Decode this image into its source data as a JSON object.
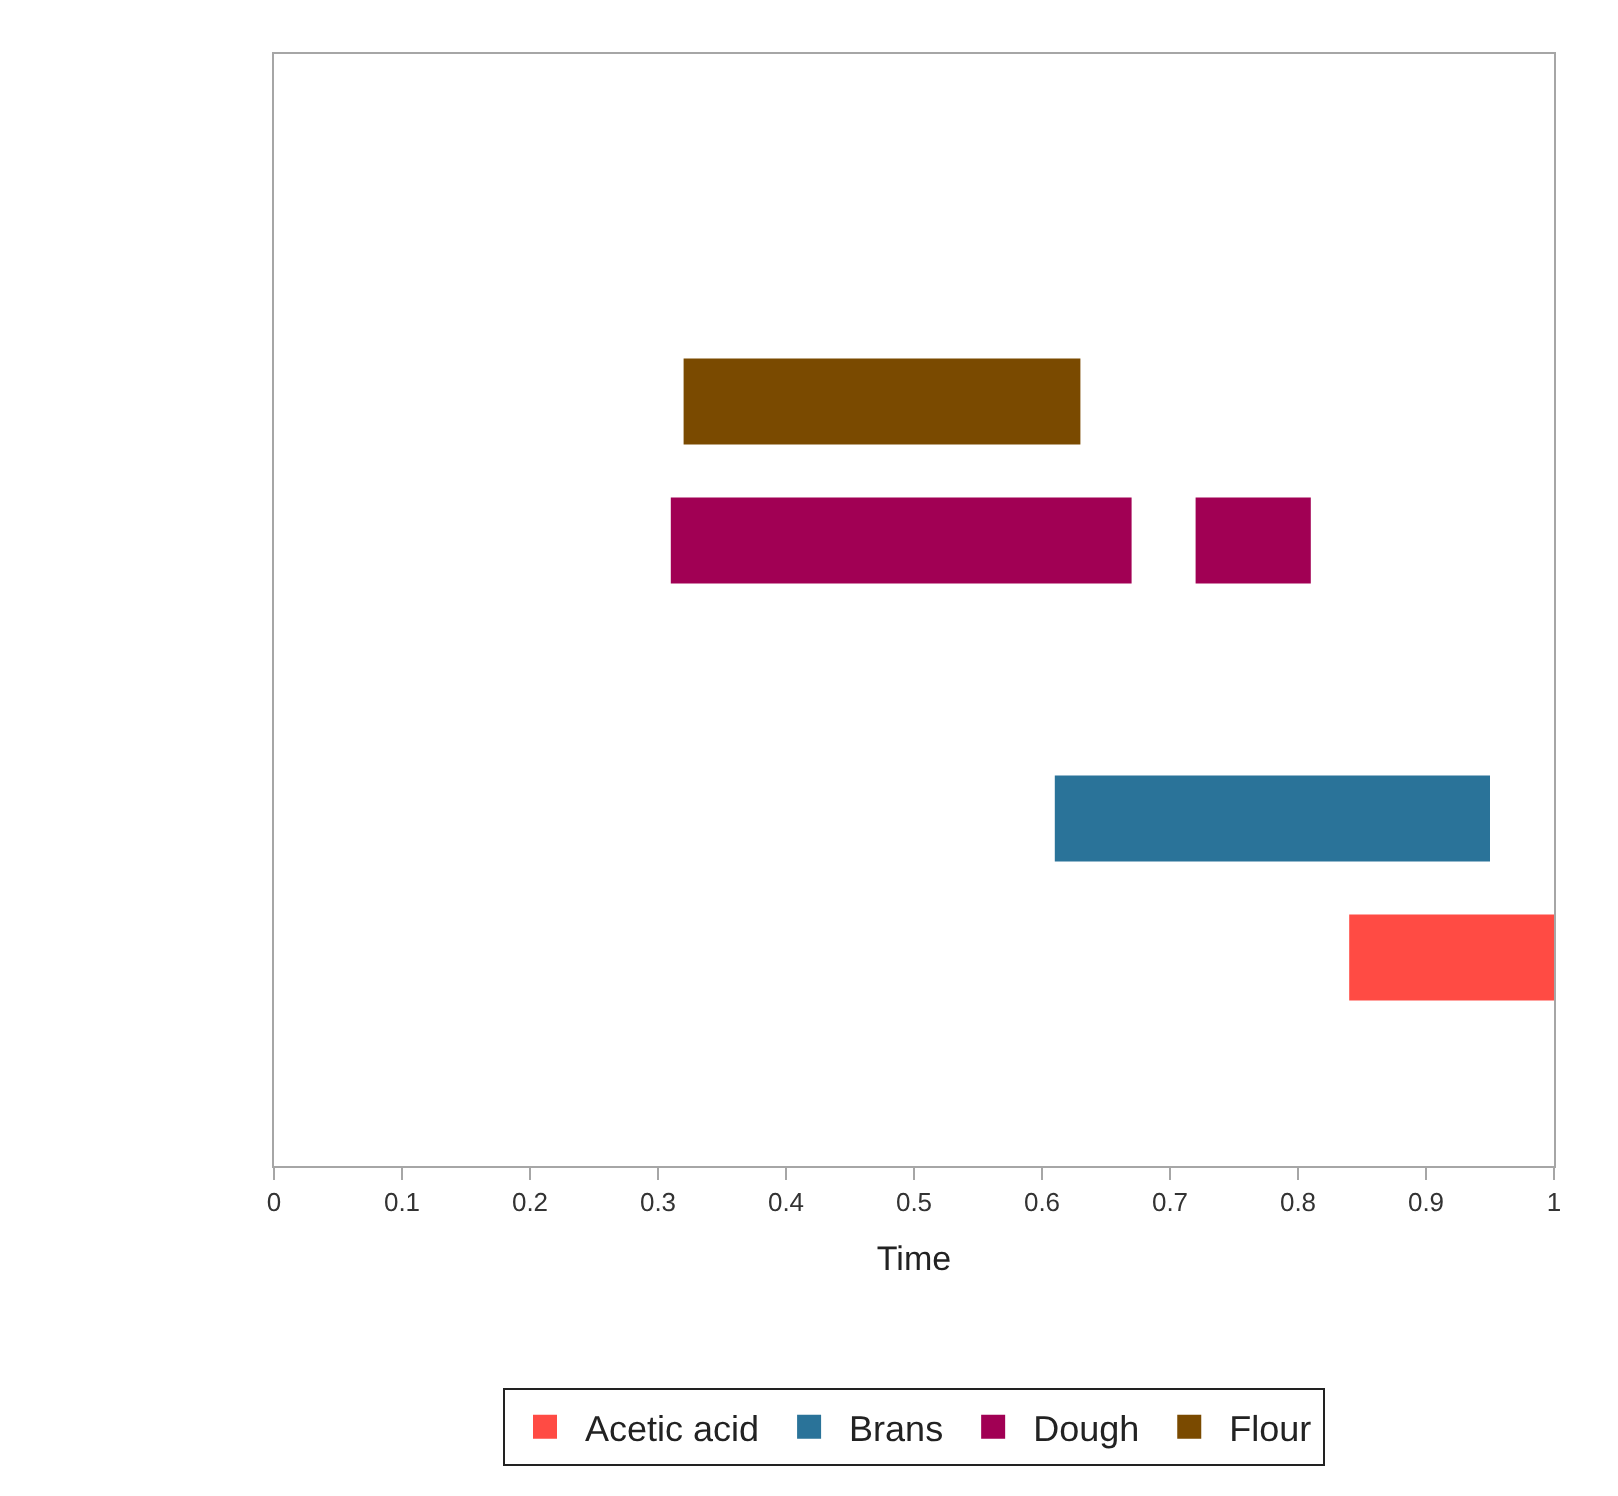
{
  "chart_data": {
    "type": "bar",
    "orientation": "horizontal",
    "xlabel": "Time",
    "categories": [
      null,
      null,
      null,
      null,
      null,
      null,
      null,
      null
    ],
    "xlim": [
      0,
      1
    ],
    "xticks": [
      0,
      0.1,
      0.2,
      0.3,
      0.4,
      0.5,
      0.6,
      0.7,
      0.8,
      0.9,
      1
    ],
    "legend": "bottom",
    "series": [
      {
        "name": "Acetic acid",
        "color": "#ff4b44",
        "values": [
          null,
          null,
          null,
          null,
          null,
          null,
          0.16,
          null
        ],
        "base": [
          null,
          null,
          null,
          null,
          null,
          null,
          0.84,
          null
        ]
      },
      {
        "name": "Brans",
        "color": "#2a7399",
        "values": [
          null,
          null,
          null,
          null,
          null,
          0.34,
          null,
          null
        ],
        "base": [
          null,
          null,
          null,
          null,
          null,
          0.61,
          null,
          null
        ]
      },
      {
        "name": "Dough",
        "color": "#a10054",
        "values": [
          null,
          null,
          null,
          0.36,
          null,
          null,
          null,
          null
        ],
        "base": [
          null,
          null,
          null,
          0.31,
          null,
          null,
          null,
          null
        ]
      },
      {
        "color": "#a10054",
        "values": [
          null,
          null,
          null,
          0.09,
          null,
          null,
          null,
          null
        ],
        "base": [
          null,
          null,
          null,
          0.72,
          null,
          null,
          null,
          null
        ]
      },
      {
        "name": "Flour",
        "color": "#7a4a00",
        "values": [
          null,
          null,
          0.31,
          null,
          null,
          null,
          null,
          null
        ],
        "base": [
          null,
          null,
          0.32,
          null,
          null,
          null,
          null,
          null
        ]
      }
    ]
  }
}
